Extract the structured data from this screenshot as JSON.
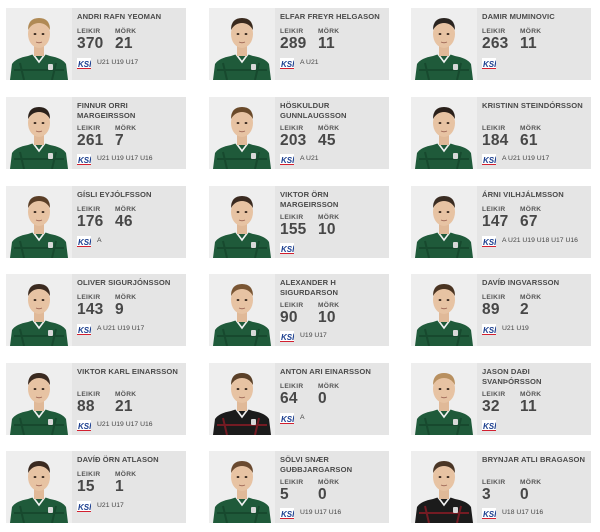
{
  "labels": {
    "games": "LEIKIR",
    "goals": "MÖRK",
    "federation_logo": "KSÍ"
  },
  "colors": {
    "card_bg": "#e5e5e5",
    "jersey_green": "#1f5a3a",
    "ksi_blue": "#1c3f8f",
    "ksi_red": "#d22030"
  },
  "players": [
    {
      "name": "ANDRI RAFN YEOMAN",
      "games": "370",
      "goals": "21",
      "teams": "U21 U19 U17",
      "jersey": "green",
      "hair": "#b08a55"
    },
    {
      "name": "ELFAR FREYR HELGASON",
      "games": "289",
      "goals": "11",
      "teams": "A U21",
      "jersey": "green",
      "hair": "#3a2a1e"
    },
    {
      "name": "DAMIR MUMINOVIC",
      "games": "263",
      "goals": "11",
      "teams": "",
      "jersey": "green",
      "hair": "#2a2420"
    },
    {
      "name": "FINNUR ORRI MARGEIRSSON",
      "games": "261",
      "goals": "7",
      "teams": "U21 U19 U17 U16",
      "jersey": "green",
      "hair": "#2b211b"
    },
    {
      "name": "HÖSKULDUR GUNNLAUGSSON",
      "games": "203",
      "goals": "45",
      "teams": "A U21",
      "jersey": "green",
      "hair": "#6a4a2a"
    },
    {
      "name": "KRISTINN STEINDÓRSSON",
      "games": "184",
      "goals": "61",
      "teams": "A U21 U19 U17",
      "jersey": "green",
      "hair": "#2a201a"
    },
    {
      "name": "GÍSLI EYJÓLFSSON",
      "games": "176",
      "goals": "46",
      "teams": "A",
      "jersey": "green",
      "hair": "#5a3e26"
    },
    {
      "name": "VIKTOR ÖRN MARGEIRSSON",
      "games": "155",
      "goals": "10",
      "teams": "",
      "jersey": "green",
      "hair": "#3a2a20"
    },
    {
      "name": "ÁRNI VILHJÁLMSSON",
      "games": "147",
      "goals": "67",
      "teams": "A U21 U19 U18 U17 U16",
      "jersey": "green",
      "hair": "#3a2c22"
    },
    {
      "name": "OLIVER SIGURJÓNSSON",
      "games": "143",
      "goals": "9",
      "teams": "A U21 U19 U17",
      "jersey": "green",
      "hair": "#3b2b20"
    },
    {
      "name": "ALEXANDER H SIGURDARSON",
      "games": "90",
      "goals": "10",
      "teams": "U19 U17",
      "jersey": "green",
      "hair": "#7a5634"
    },
    {
      "name": "DAVÍÐ INGVARSSON",
      "games": "89",
      "goals": "2",
      "teams": "U21 U19",
      "jersey": "green",
      "hair": "#4a3422"
    },
    {
      "name": "VIKTOR KARL EINARSSON",
      "games": "88",
      "goals": "21",
      "teams": "U21 U19 U17 U16",
      "jersey": "green",
      "hair": "#3a2a20"
    },
    {
      "name": "ANTON ARI EINARSSON",
      "games": "64",
      "goals": "0",
      "teams": "A",
      "jersey": "black",
      "hair": "#5a4028"
    },
    {
      "name": "JASON DAÐI SVANÞÓRSSON",
      "games": "32",
      "goals": "11",
      "teams": "",
      "jersey": "green",
      "hair": "#b89060"
    },
    {
      "name": "DAVÍÐ ÖRN ATLASON",
      "games": "15",
      "goals": "1",
      "teams": "U21 U17",
      "jersey": "green",
      "hair": "#3a2a20"
    },
    {
      "name": "SÖLVI SNÆR GUÐBJARGARSON",
      "games": "5",
      "goals": "0",
      "teams": "U19 U17 U16",
      "jersey": "green",
      "hair": "#6a4a30"
    },
    {
      "name": "BRYNJAR ATLI BRAGASON",
      "games": "3",
      "goals": "0",
      "teams": "U18 U17 U16",
      "jersey": "black",
      "hair": "#4a3626"
    }
  ]
}
